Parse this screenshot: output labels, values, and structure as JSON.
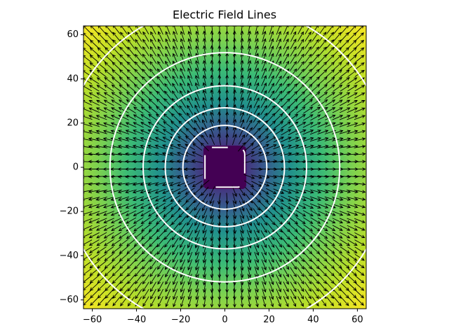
{
  "chart_data": {
    "type": "field",
    "title": "Electric Field Lines",
    "xlim": [
      -64,
      64
    ],
    "ylim": [
      -64,
      64
    ],
    "xticks": [
      {
        "value": -60,
        "label": "−60"
      },
      {
        "value": -40,
        "label": "−40"
      },
      {
        "value": -20,
        "label": "−20"
      },
      0,
      20,
      40,
      60
    ],
    "yticks": [
      {
        "value": -60,
        "label": "−60"
      },
      {
        "value": -40,
        "label": "−40"
      },
      {
        "value": -20,
        "label": "−20"
      },
      0,
      20,
      40,
      60
    ],
    "contour_radii": [
      9,
      19,
      27,
      37,
      52,
      74
    ]
  }
}
